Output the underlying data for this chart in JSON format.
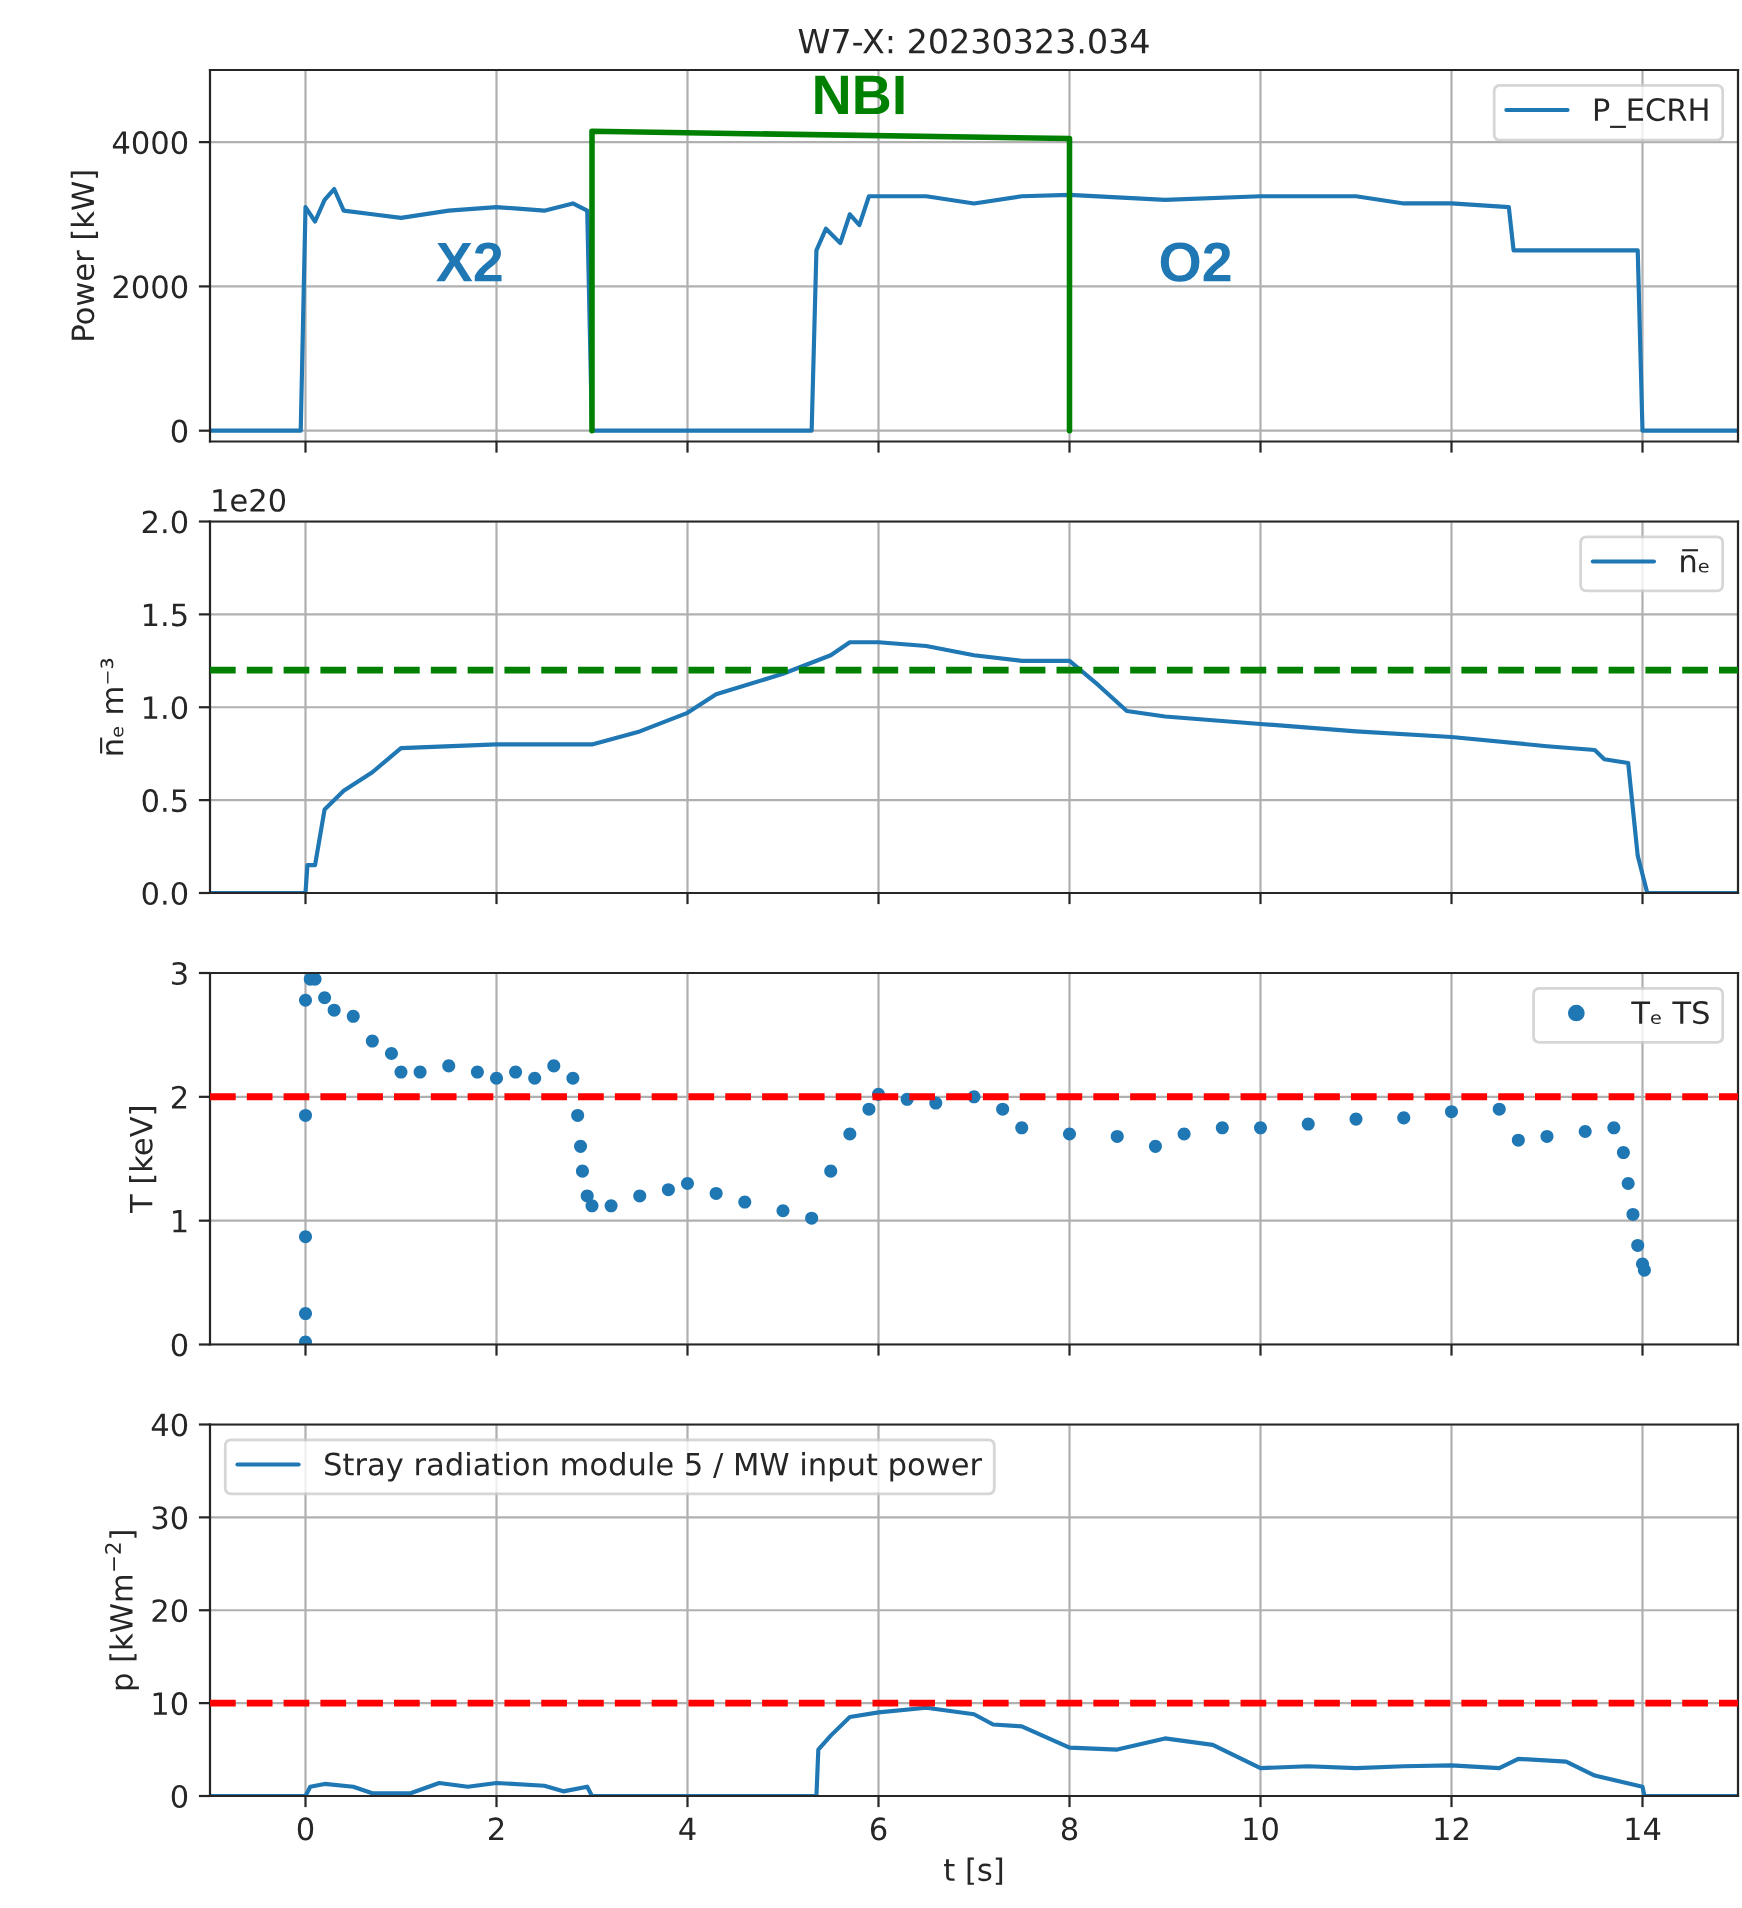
{
  "chart_data": [
    {
      "type": "line",
      "title": "W7-X: 20230323.034",
      "ylabel": "Power [kW]",
      "xlim": [
        -1,
        15
      ],
      "xticks": [
        {
          "value": 0,
          "label": null
        },
        {
          "value": 2,
          "label": null
        },
        {
          "value": 4,
          "label": null
        },
        {
          "value": 6,
          "label": null
        },
        {
          "value": 8,
          "label": null
        },
        {
          "value": 10,
          "label": null
        },
        {
          "value": 12,
          "label": null
        },
        {
          "value": 14,
          "label": null
        }
      ],
      "ylim": [
        -150,
        5000
      ],
      "yticks": [
        0,
        2000,
        4000
      ],
      "grid": true,
      "legend": "top right",
      "tick_labels": "y",
      "series": [
        {
          "name": "P_ECRH",
          "color": "#1f77b4",
          "x": [
            -1,
            -0.05,
            0.0,
            0.1,
            0.2,
            0.3,
            0.4,
            0.7,
            1.0,
            1.5,
            2.0,
            2.5,
            2.8,
            2.95,
            3.0,
            5.3,
            5.35,
            5.45,
            5.6,
            5.7,
            5.8,
            5.9,
            6.5,
            7.0,
            7.5,
            8,
            9,
            10,
            11,
            11.5,
            12,
            12.6,
            12.65,
            13.5,
            13.95,
            14.0,
            15
          ],
          "values": [
            0,
            0,
            3100,
            2900,
            3200,
            3350,
            3050,
            3000,
            2950,
            3050,
            3100,
            3050,
            3150,
            3050,
            0,
            0,
            2500,
            2800,
            2600,
            3000,
            2850,
            3250,
            3250,
            3150,
            3250,
            3270,
            3200,
            3250,
            3250,
            3150,
            3150,
            3100,
            2500,
            2500,
            2500,
            0,
            0
          ]
        },
        {
          "color": "#008000",
          "x": [
            3,
            3,
            8,
            8
          ],
          "values": [
            0,
            4150,
            4050,
            0
          ]
        }
      ],
      "annotations": [
        "NBI",
        "X2",
        "O2"
      ]
    },
    {
      "type": "line",
      "ylabel": "n̅ₑ m⁻³",
      "xlim": [
        -1,
        15
      ],
      "xticks": [
        {
          "value": 0,
          "label": null
        },
        {
          "value": 2,
          "label": null
        },
        {
          "value": 4,
          "label": null
        },
        {
          "value": 6,
          "label": null
        },
        {
          "value": 8,
          "label": null
        },
        {
          "value": 10,
          "label": null
        },
        {
          "value": 12,
          "label": null
        },
        {
          "value": 14,
          "label": null
        }
      ],
      "ylim": [
        0,
        2.0
      ],
      "yticks": [
        {
          "value": 0,
          "label": "0.0"
        },
        {
          "value": 0.5,
          "label": "0.5"
        },
        {
          "value": 1.0,
          "label": "1.0"
        },
        {
          "value": 1.5,
          "label": "1.5"
        },
        {
          "value": 2.0,
          "label": "2.0"
        }
      ],
      "grid": true,
      "legend": "top right",
      "tick_labels": "y",
      "series": [
        {
          "name": "n̅ₑ",
          "color": "#1f77b4",
          "x": [
            -1,
            0,
            0.02,
            0.1,
            0.2,
            0.4,
            0.7,
            1.0,
            2,
            3,
            3.5,
            4,
            4.3,
            5,
            5.5,
            5.7,
            6,
            6.5,
            7,
            7.5,
            8,
            8.3,
            8.6,
            9,
            10,
            11,
            12,
            13,
            13.5,
            13.6,
            13.85,
            13.95,
            14.05,
            15
          ],
          "values": [
            0,
            0,
            0.15,
            0.15,
            0.45,
            0.55,
            0.65,
            0.78,
            0.8,
            0.8,
            0.87,
            0.97,
            1.07,
            1.18,
            1.28,
            1.35,
            1.35,
            1.33,
            1.28,
            1.25,
            1.25,
            1.12,
            0.98,
            0.95,
            0.91,
            0.87,
            0.84,
            0.79,
            0.77,
            0.72,
            0.7,
            0.2,
            0,
            0
          ]
        }
      ],
      "ref_lines": [
        {
          "axis": "y",
          "value": 1.2,
          "color": "#008000",
          "line_style": "dashed"
        }
      ],
      "annotations": [
        "1e20"
      ]
    },
    {
      "type": "scatter",
      "ylabel": "T [keV]",
      "xlim": [
        -1,
        15
      ],
      "xticks": [
        {
          "value": 0,
          "label": null
        },
        {
          "value": 2,
          "label": null
        },
        {
          "value": 4,
          "label": null
        },
        {
          "value": 6,
          "label": null
        },
        {
          "value": 8,
          "label": null
        },
        {
          "value": 10,
          "label": null
        },
        {
          "value": 12,
          "label": null
        },
        {
          "value": 14,
          "label": null
        }
      ],
      "ylim": [
        0,
        3
      ],
      "yticks": [
        0,
        1,
        2,
        3
      ],
      "grid": true,
      "legend": "top right",
      "tick_labels": "y",
      "marker": "circle",
      "series": [
        {
          "name": "Tₑ TS",
          "color": "#1f77b4",
          "x": [
            0.0,
            0.0,
            0.0,
            0.0,
            0.0,
            0.05,
            0.1,
            0.2,
            0.3,
            0.5,
            0.7,
            0.9,
            1.0,
            1.2,
            1.5,
            1.8,
            2.0,
            2.2,
            2.4,
            2.6,
            2.8,
            2.85,
            2.88,
            2.9,
            2.95,
            3.0,
            3.2,
            3.5,
            3.8,
            4.0,
            4.3,
            4.6,
            5.0,
            5.3,
            5.5,
            5.7,
            5.9,
            6.0,
            6.3,
            6.6,
            7.0,
            7.3,
            7.5,
            8,
            8.5,
            8.9,
            9.2,
            9.6,
            10,
            10.5,
            11,
            11.5,
            12,
            12.5,
            12.7,
            13,
            13.4,
            13.7,
            13.8,
            13.85,
            13.9,
            13.95,
            14,
            14.02
          ],
          "values": [
            0.02,
            0.25,
            0.87,
            1.85,
            2.78,
            2.95,
            2.95,
            2.8,
            2.7,
            2.65,
            2.45,
            2.35,
            2.2,
            2.2,
            2.25,
            2.2,
            2.15,
            2.2,
            2.15,
            2.25,
            2.15,
            1.85,
            1.6,
            1.4,
            1.2,
            1.12,
            1.12,
            1.2,
            1.25,
            1.3,
            1.22,
            1.15,
            1.08,
            1.02,
            1.4,
            1.7,
            1.9,
            2.02,
            1.98,
            1.95,
            2.0,
            1.9,
            1.75,
            1.7,
            1.68,
            1.6,
            1.7,
            1.75,
            1.75,
            1.78,
            1.82,
            1.83,
            1.88,
            1.9,
            1.65,
            1.68,
            1.72,
            1.75,
            1.55,
            1.3,
            1.05,
            0.8,
            0.65,
            0.6
          ]
        }
      ],
      "ref_lines": [
        {
          "axis": "y",
          "value": 2,
          "color": "#ff0000",
          "line_style": "dashed"
        }
      ]
    },
    {
      "type": "line",
      "xlabel": "t [s]",
      "ylabel": "p [kWm$^{−2}$]",
      "xlim": [
        -1,
        15
      ],
      "xticks": [
        0,
        2,
        4,
        6,
        8,
        10,
        12,
        14
      ],
      "ylim": [
        0,
        40
      ],
      "yticks": [
        0,
        10,
        20,
        30,
        40
      ],
      "grid": true,
      "legend": "top left",
      "series": [
        {
          "name": "Stray radiation module 5 / MW input power",
          "color": "#1f77b4",
          "x": [
            -1,
            0,
            0.05,
            0.2,
            0.5,
            0.7,
            1.1,
            1.4,
            1.7,
            2.0,
            2.5,
            2.7,
            2.95,
            3.0,
            5.35,
            5.37,
            5.5,
            5.7,
            6,
            6.5,
            7,
            7.2,
            7.5,
            8,
            8.5,
            9,
            9.5,
            10,
            10.5,
            11,
            11.5,
            12,
            12.5,
            12.7,
            13.2,
            13.5,
            14,
            14.02,
            15
          ],
          "values": [
            0,
            0,
            1.0,
            1.3,
            1.0,
            0.3,
            0.3,
            1.4,
            1.0,
            1.4,
            1.1,
            0.5,
            1.0,
            0,
            0,
            5,
            6.5,
            8.5,
            9,
            9.5,
            8.8,
            7.7,
            7.5,
            5.2,
            5,
            6.2,
            5.5,
            3,
            3.2,
            3,
            3.2,
            3.3,
            3,
            4,
            3.7,
            2.2,
            1,
            0,
            0
          ]
        }
      ],
      "ref_lines": [
        {
          "axis": "y",
          "value": 10,
          "color": "#ff0000",
          "line_style": "dashed"
        }
      ]
    }
  ]
}
